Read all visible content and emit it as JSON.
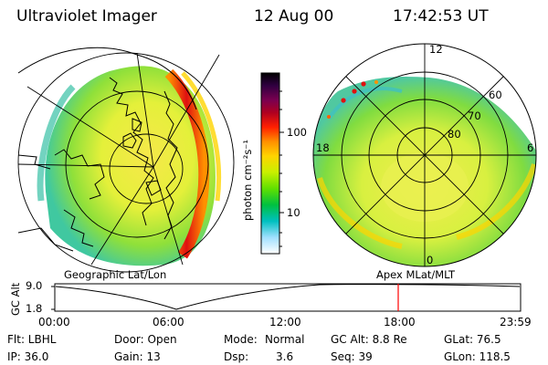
{
  "header": {
    "instrument": "Ultraviolet Imager",
    "date": "12 Aug 00",
    "time": "17:42:53 UT"
  },
  "colorbar": {
    "unit_label": "photon cm⁻²s⁻¹",
    "ticks": [
      "100",
      "10"
    ],
    "colors": [
      "#000000",
      "#300040",
      "#7a0050",
      "#b00020",
      "#ff2000",
      "#ff9000",
      "#ffd400",
      "#c8f000",
      "#60e000",
      "#00c040",
      "#00c0c0",
      "#a0e0ff",
      "#ffffff"
    ]
  },
  "left_map": {
    "label": "Geographic Lat/Lon"
  },
  "right_map": {
    "label": "Apex  MLat/MLT",
    "mlt_labels": {
      "top": "12",
      "left": "18",
      "right": "6",
      "bottom": "0"
    },
    "lat_labels": [
      "60",
      "70",
      "80"
    ]
  },
  "timeline": {
    "axis_title": "GC Alt",
    "y_ticks": [
      "9.0",
      "1.8"
    ],
    "x_ticks": [
      "00:00",
      "06:00",
      "12:00",
      "18:00",
      "23:59"
    ],
    "marker_color": "#ff0000"
  },
  "info": {
    "flt": "Flt: LBHL",
    "ip": "IP: 36.0",
    "door": "Door: Open",
    "gain": "Gain: 13",
    "mode_label": "Mode:",
    "mode_value": "Normal",
    "dsp_label": "Dsp:",
    "dsp_value": "3.6",
    "gc_alt": "GC Alt: 8.8 Re",
    "seq": "Seq: 39",
    "glat": "GLat:  76.5",
    "glon": "GLon: 118.5"
  }
}
